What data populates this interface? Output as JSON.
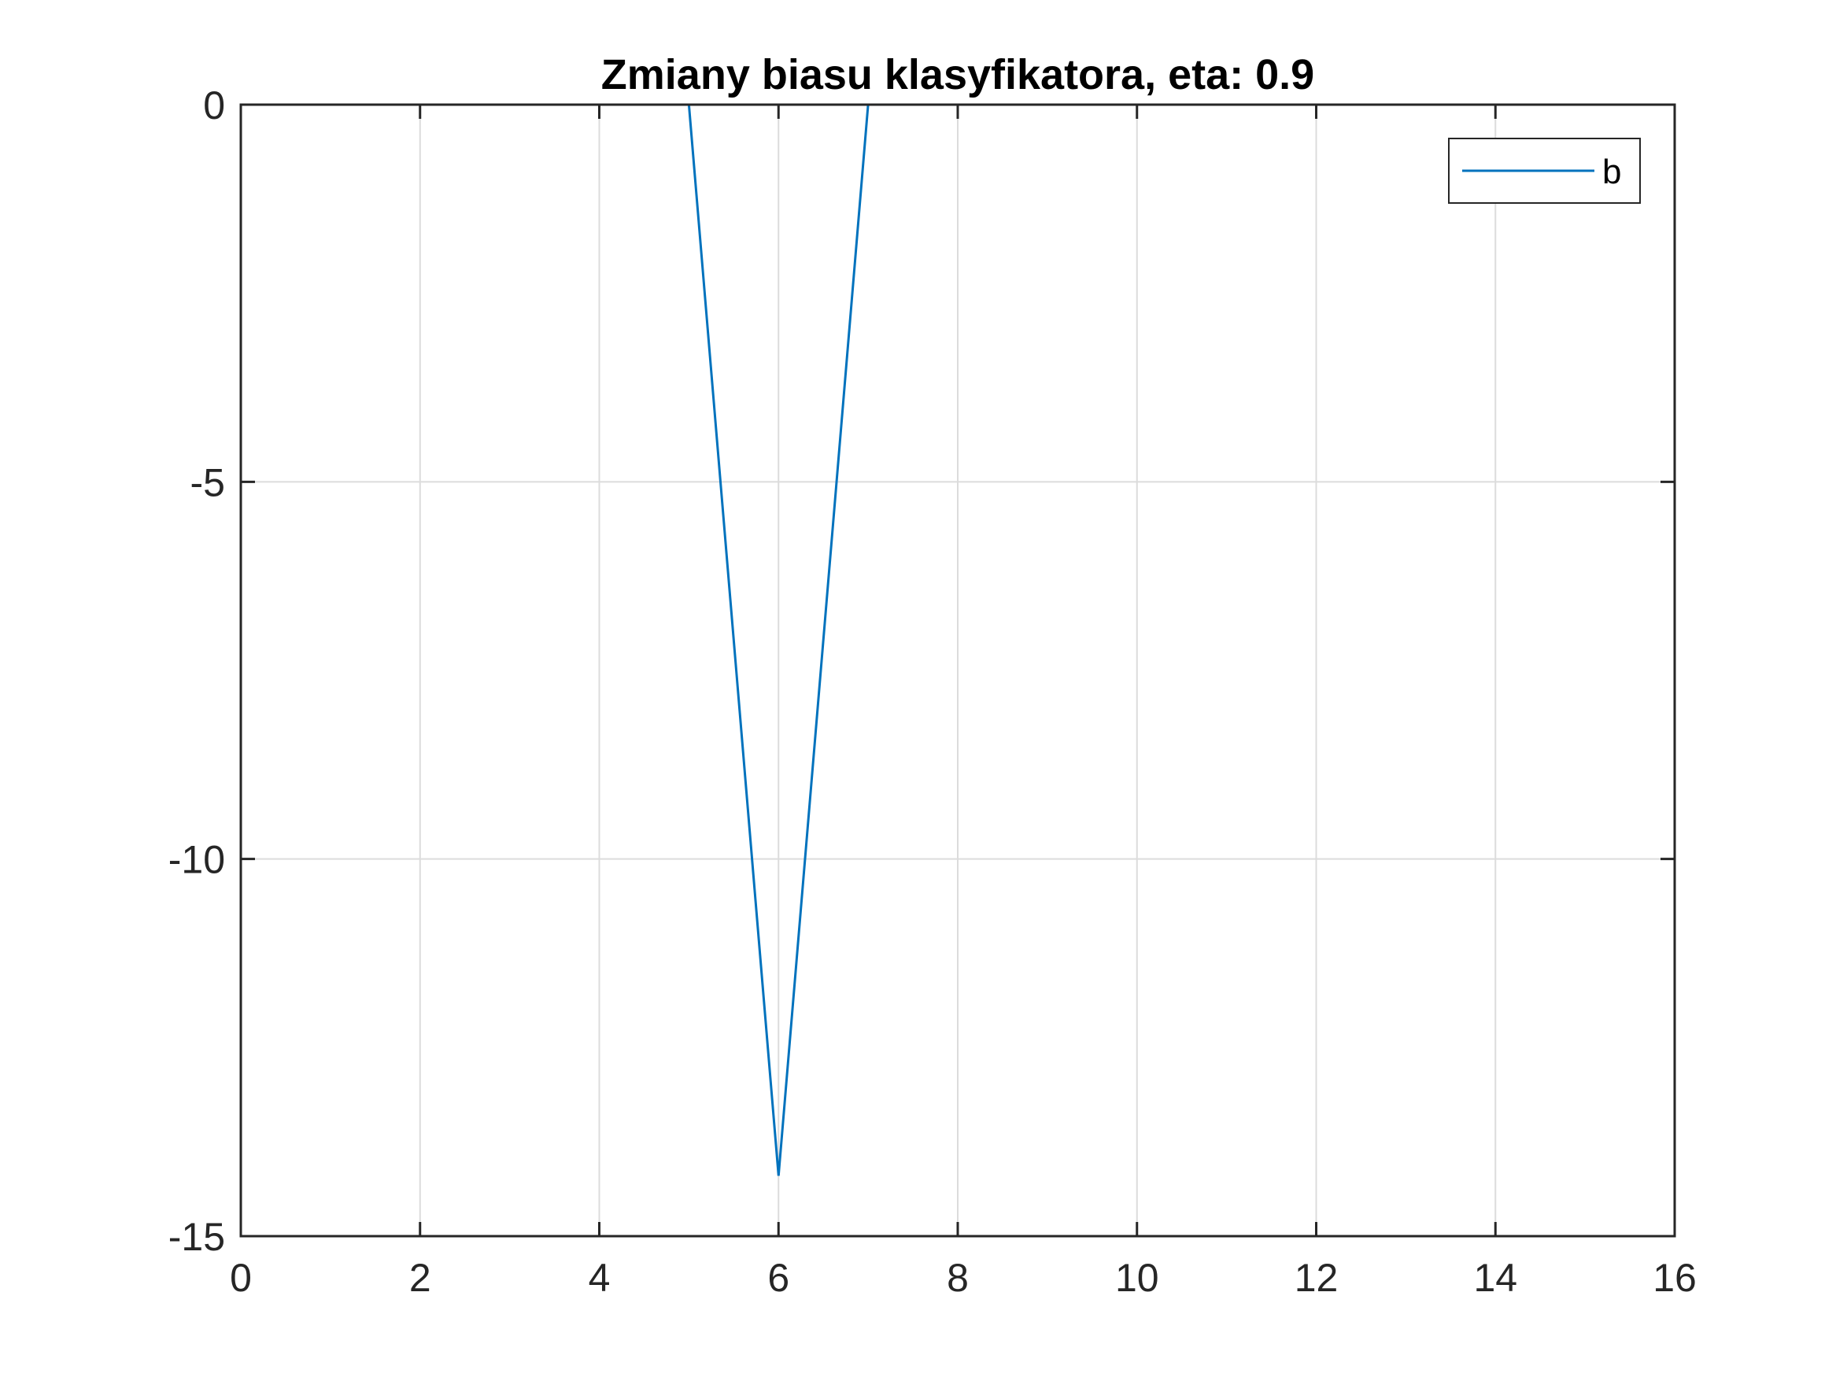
{
  "chart_data": {
    "type": "line",
    "title": "Zmiany biasu klasyfikatora, eta: 0.9",
    "xlabel": "",
    "ylabel": "",
    "xlim": [
      0,
      16
    ],
    "ylim": [
      -15,
      0
    ],
    "xticks": [
      0,
      2,
      4,
      6,
      8,
      10,
      12,
      14,
      16
    ],
    "yticks": [
      0,
      -5,
      -10,
      -15
    ],
    "xtick_labels": [
      "0",
      "2",
      "4",
      "6",
      "8",
      "10",
      "12",
      "14",
      "16"
    ],
    "ytick_labels": [
      "0",
      "-5",
      "-10",
      "-15"
    ],
    "grid": true,
    "legend_position": "top-right",
    "series": [
      {
        "name": "b",
        "color": "#0072BD",
        "x": [
          1,
          2,
          3,
          4,
          5,
          6,
          7,
          8,
          9,
          10,
          11,
          12,
          13,
          14,
          15,
          16
        ],
        "y": [
          0,
          0,
          0,
          0,
          0,
          -14.2,
          0,
          0,
          0,
          0,
          0,
          0,
          0,
          0,
          0,
          0
        ]
      }
    ]
  }
}
